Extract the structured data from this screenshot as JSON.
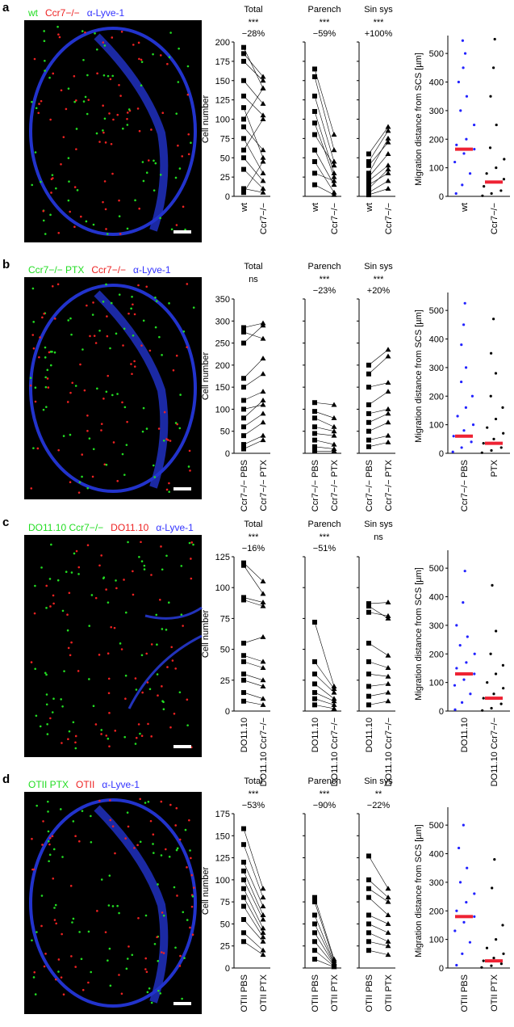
{
  "panels": [
    {
      "letter": "a",
      "labels": [
        {
          "text": "wt",
          "color": "#22dd22"
        },
        {
          "text": "Ccr7−/−",
          "color": "#ee2222"
        },
        {
          "text": "α-Lyve-1",
          "color": "#3333ff"
        }
      ]
    },
    {
      "letter": "b",
      "labels": [
        {
          "text": "Ccr7−/− PTX",
          "color": "#22dd22"
        },
        {
          "text": "Ccr7−/−",
          "color": "#ee2222"
        },
        {
          "text": "α-Lyve-1",
          "color": "#3333ff"
        }
      ]
    },
    {
      "letter": "c",
      "labels": [
        {
          "text": "DO11.10 Ccr7−/−",
          "color": "#22dd22"
        },
        {
          "text": "DO11.10",
          "color": "#ee2222"
        },
        {
          "text": "α-Lyve-1",
          "color": "#3333ff"
        }
      ]
    },
    {
      "letter": "d",
      "labels": [
        {
          "text": "OTII PTX",
          "color": "#22dd22"
        },
        {
          "text": "OTII",
          "color": "#ee2222"
        },
        {
          "text": "α-Lyve-1",
          "color": "#3333ff"
        }
      ]
    }
  ],
  "chart_data": [
    {
      "type": "paired",
      "ylabel": "Cell number",
      "ylim": [
        0,
        200
      ],
      "yticks": [
        0,
        25,
        50,
        75,
        100,
        125,
        150,
        175,
        200
      ],
      "subplots": [
        {
          "title": "Total",
          "stat": "***",
          "change": "−28%",
          "series": [
            {
              "name": "wt",
              "values": [
                193,
                185,
                175,
                150,
                130,
                115,
                100,
                90,
                75,
                60,
                50,
                35,
                10,
                5
              ]
            },
            {
              "name": "Ccr7−/−",
              "values": [
                140,
                155,
                150,
                120,
                105,
                50,
                140,
                60,
                30,
                100,
                20,
                10,
                5,
                45
              ]
            }
          ]
        },
        {
          "title": "Parench",
          "stat": "***",
          "change": "−59%",
          "series": [
            {
              "name": "wt",
              "values": [
                165,
                155,
                130,
                110,
                95,
                80,
                60,
                45,
                30,
                15
              ]
            },
            {
              "name": "Ccr7−/−",
              "values": [
                80,
                60,
                45,
                30,
                25,
                40,
                15,
                5,
                20,
                2
              ]
            }
          ]
        },
        {
          "title": "Sin sys",
          "stat": "***",
          "change": "+100%",
          "series": [
            {
              "name": "wt",
              "values": [
                55,
                45,
                40,
                30,
                25,
                20,
                15,
                10,
                5,
                2
              ]
            },
            {
              "name": "Ccr7−/−",
              "values": [
                90,
                85,
                70,
                75,
                55,
                40,
                30,
                35,
                20,
                10
              ]
            }
          ]
        }
      ]
    },
    {
      "type": "strip",
      "ylabel": "Migration distance from SCS [µm]",
      "ylim": [
        0,
        540
      ],
      "yticks": [
        0,
        100,
        200,
        300,
        400,
        500
      ],
      "series": [
        {
          "name": "wt",
          "color": "#2222ff",
          "median": 165,
          "values": [
            10,
            40,
            80,
            120,
            150,
            165,
            180,
            200,
            250,
            300,
            350,
            400,
            450,
            500,
            545
          ]
        },
        {
          "name": "Ccr7−/−",
          "color": "#000000",
          "median": 50,
          "values": [
            2,
            10,
            20,
            35,
            50,
            60,
            80,
            100,
            130,
            170,
            250,
            350,
            450,
            550
          ]
        }
      ]
    },
    {
      "type": "paired",
      "ylabel": "Cell number",
      "ylim": [
        0,
        350
      ],
      "yticks": [
        0,
        50,
        100,
        150,
        200,
        250,
        300,
        350
      ],
      "subplots": [
        {
          "title": "Total",
          "stat": "ns",
          "series": [
            {
              "name": "Ccr7−/− PBS",
              "values": [
                285,
                275,
                250,
                170,
                150,
                120,
                100,
                80,
                60,
                40,
                20,
                10
              ]
            },
            {
              "name": "Ccr7−/− PTX",
              "values": [
                295,
                260,
                290,
                215,
                180,
                140,
                110,
                120,
                90,
                70,
                40,
                30
              ]
            }
          ]
        },
        {
          "title": "Parench",
          "stat": "***",
          "change": "−23%",
          "series": [
            {
              "name": "Ccr7−/− PBS",
              "values": [
                115,
                95,
                80,
                60,
                45,
                30,
                15,
                5
              ]
            },
            {
              "name": "Ccr7−/− PTX",
              "values": [
                110,
                80,
                60,
                50,
                40,
                20,
                10,
                5
              ]
            }
          ]
        },
        {
          "title": "Sin sys",
          "stat": "***",
          "change": "+20%",
          "series": [
            {
              "name": "Ccr7−/− PBS",
              "values": [
                200,
                180,
                150,
                110,
                90,
                70,
                50,
                30,
                15
              ]
            },
            {
              "name": "Ccr7−/− PTX",
              "values": [
                235,
                220,
                160,
                140,
                100,
                90,
                70,
                40,
                25
              ]
            }
          ]
        }
      ]
    },
    {
      "type": "strip",
      "ylabel": "Migration distance from SCS [µm]",
      "ylim": [
        0,
        540
      ],
      "yticks": [
        0,
        100,
        200,
        300,
        400,
        500
      ],
      "series": [
        {
          "name": "Ccr7−/− PBS",
          "color": "#2222ff",
          "median": 60,
          "values": [
            5,
            20,
            40,
            60,
            80,
            100,
            130,
            160,
            200,
            250,
            300,
            380,
            450,
            525
          ]
        },
        {
          "name": "PTX",
          "color": "#000000",
          "median": 35,
          "values": [
            2,
            10,
            20,
            35,
            50,
            70,
            90,
            120,
            160,
            200,
            280,
            350,
            470
          ]
        }
      ]
    },
    {
      "type": "paired",
      "ylabel": "Cell number",
      "ylim": [
        0,
        125
      ],
      "yticks": [
        0,
        25,
        50,
        75,
        100,
        125
      ],
      "subplots": [
        {
          "title": "Total",
          "stat": "***",
          "change": "−16%",
          "series": [
            {
              "name": "DO11.10",
              "values": [
                120,
                118,
                92,
                90,
                55,
                45,
                40,
                30,
                25,
                15,
                8
              ]
            },
            {
              "name": "DO11.10 Ccr7−/−",
              "values": [
                105,
                95,
                88,
                85,
                60,
                40,
                35,
                25,
                20,
                10,
                5
              ]
            }
          ]
        },
        {
          "title": "Parench",
          "stat": "***",
          "change": "−51%",
          "series": [
            {
              "name": "DO11.10",
              "values": [
                72,
                40,
                30,
                22,
                15,
                10,
                5
              ]
            },
            {
              "name": "DO11.10 Ccr7−/−",
              "values": [
                20,
                18,
                15,
                10,
                8,
                5,
                2
              ]
            }
          ]
        },
        {
          "title": "Sin sys",
          "stat": "ns",
          "series": [
            {
              "name": "DO11.10",
              "values": [
                87,
                85,
                80,
                55,
                40,
                30,
                20,
                12,
                5
              ]
            },
            {
              "name": "DO11.10 Ccr7−/−",
              "values": [
                88,
                75,
                77,
                45,
                35,
                28,
                22,
                15,
                8
              ]
            }
          ]
        }
      ]
    },
    {
      "type": "strip",
      "ylabel": "Migration distance from SCS [µm]",
      "ylim": [
        0,
        540
      ],
      "yticks": [
        0,
        100,
        200,
        300,
        400,
        500
      ],
      "series": [
        {
          "name": "DO11.10",
          "color": "#2222ff",
          "median": 130,
          "values": [
            5,
            30,
            60,
            90,
            110,
            130,
            150,
            170,
            200,
            230,
            260,
            300,
            380,
            490
          ]
        },
        {
          "name": "DO11.10 Ccr7−/−",
          "color": "#000000",
          "median": 45,
          "values": [
            2,
            10,
            25,
            45,
            60,
            80,
            100,
            130,
            160,
            200,
            280,
            440
          ]
        }
      ]
    },
    {
      "type": "paired",
      "ylabel": "Cell number",
      "ylim": [
        0,
        175
      ],
      "yticks": [
        0,
        25,
        50,
        75,
        100,
        125,
        150,
        175
      ],
      "subplots": [
        {
          "title": "Total",
          "stat": "***",
          "change": "−53%",
          "series": [
            {
              "name": "OTII PBS",
              "values": [
                158,
                140,
                120,
                110,
                100,
                90,
                80,
                70,
                55,
                40,
                30
              ]
            },
            {
              "name": "OTII PTX",
              "values": [
                90,
                80,
                70,
                60,
                55,
                45,
                40,
                35,
                30,
                20,
                15
              ]
            }
          ]
        },
        {
          "title": "Parench",
          "stat": "***",
          "change": "−90%",
          "series": [
            {
              "name": "OTII PBS",
              "values": [
                80,
                75,
                60,
                50,
                40,
                30,
                20,
                10
              ]
            },
            {
              "name": "OTII PTX",
              "values": [
                10,
                8,
                6,
                5,
                4,
                3,
                2,
                1
              ]
            }
          ]
        },
        {
          "title": "Sin sys",
          "stat": "**",
          "change": "−22%",
          "series": [
            {
              "name": "OTII PBS",
              "values": [
                127,
                100,
                90,
                80,
                60,
                50,
                40,
                30,
                20
              ]
            },
            {
              "name": "OTII PTX",
              "values": [
                90,
                80,
                75,
                60,
                50,
                40,
                30,
                25,
                15
              ]
            }
          ]
        }
      ]
    },
    {
      "type": "strip",
      "ylabel": "Migration distance from SCS [µm]",
      "ylim": [
        0,
        540
      ],
      "yticks": [
        0,
        100,
        200,
        300,
        400,
        500
      ],
      "series": [
        {
          "name": "OTII PBS",
          "color": "#2222ff",
          "median": 180,
          "values": [
            10,
            50,
            90,
            130,
            160,
            180,
            200,
            230,
            260,
            300,
            350,
            420,
            500
          ]
        },
        {
          "name": "OTII PTX",
          "color": "#000000",
          "median": 25,
          "values": [
            2,
            8,
            15,
            25,
            35,
            50,
            70,
            100,
            150,
            280,
            380
          ]
        }
      ]
    }
  ]
}
